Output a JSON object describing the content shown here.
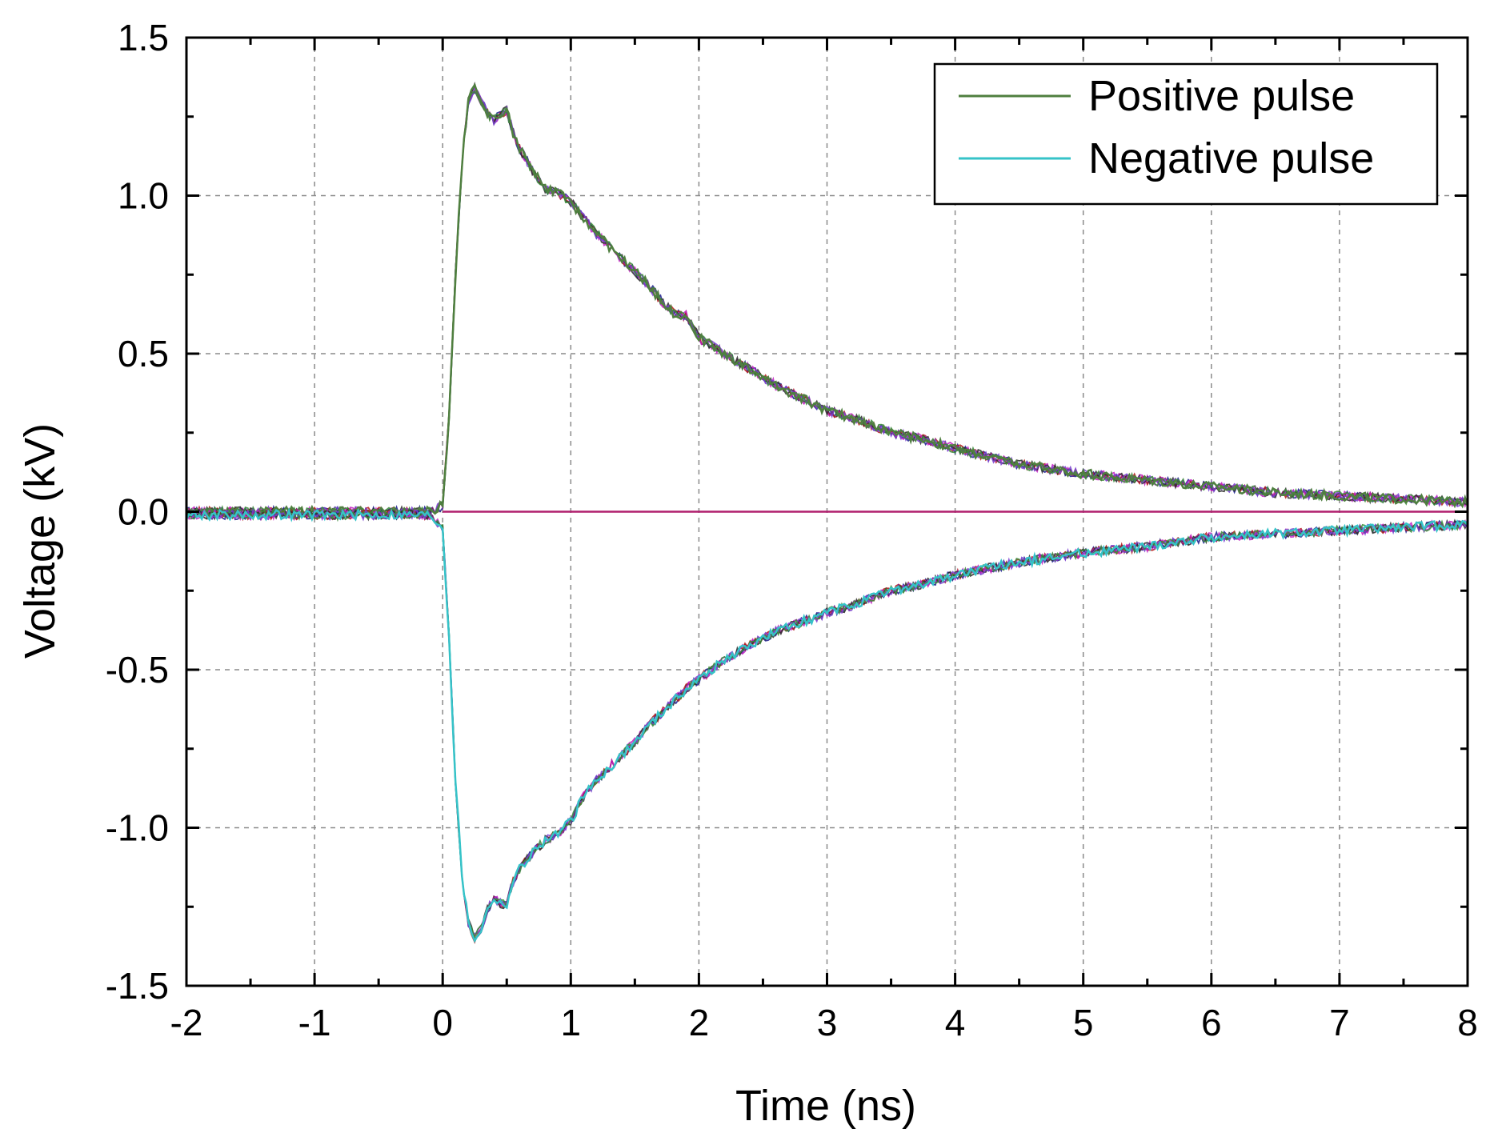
{
  "chart_data": {
    "type": "line",
    "title": "",
    "xlabel": "Time (ns)",
    "ylabel": "Voltage (kV)",
    "xlim": [
      -2,
      8
    ],
    "ylim": [
      -1.5,
      1.5
    ],
    "xticks": [
      -2,
      -1,
      0,
      1,
      2,
      3,
      4,
      5,
      6,
      7,
      8
    ],
    "xtick_labels": [
      "-2",
      "-1",
      "0",
      "1",
      "2",
      "3",
      "4",
      "5",
      "6",
      "7",
      "8"
    ],
    "yticks": [
      -1.5,
      -1.0,
      -0.5,
      0.0,
      0.5,
      1.0,
      1.5
    ],
    "ytick_labels": [
      "-1.5",
      "-1.0",
      "-0.5",
      "0.0",
      "0.5",
      "1.0",
      "1.5"
    ],
    "grid": true,
    "legend_position": "top-right",
    "legend": [
      {
        "label": "Positive pulse",
        "color": "#4f7f3f"
      },
      {
        "label": "Negative pulse",
        "color": "#35c3c8"
      }
    ],
    "reference_line": {
      "y": 0.0,
      "color": "#b0206e"
    },
    "series": [
      {
        "name": "Positive pulse",
        "color": "#4f7f3f",
        "x": [
          -2,
          -1.5,
          -1,
          -0.5,
          -0.1,
          0,
          0.05,
          0.1,
          0.15,
          0.2,
          0.25,
          0.3,
          0.35,
          0.4,
          0.45,
          0.5,
          0.55,
          0.6,
          0.7,
          0.8,
          0.9,
          1.0,
          1.1,
          1.2,
          1.3,
          1.4,
          1.5,
          1.6,
          1.7,
          1.8,
          1.9,
          2.0,
          2.2,
          2.4,
          2.6,
          2.8,
          3.0,
          3.25,
          3.5,
          3.75,
          4.0,
          4.5,
          5.0,
          5.5,
          6.0,
          6.5,
          7.0,
          7.5,
          8.0
        ],
        "y": [
          0.0,
          0.0,
          0.0,
          0.0,
          0.0,
          0.02,
          0.3,
          0.75,
          1.1,
          1.3,
          1.34,
          1.3,
          1.26,
          1.24,
          1.26,
          1.27,
          1.2,
          1.15,
          1.08,
          1.02,
          1.01,
          0.98,
          0.93,
          0.88,
          0.84,
          0.8,
          0.76,
          0.72,
          0.67,
          0.63,
          0.62,
          0.55,
          0.5,
          0.45,
          0.4,
          0.36,
          0.32,
          0.29,
          0.25,
          0.23,
          0.2,
          0.15,
          0.12,
          0.1,
          0.08,
          0.06,
          0.05,
          0.04,
          0.03
        ]
      },
      {
        "name": "Negative pulse",
        "color": "#35c3c8",
        "x": [
          -2,
          -1.5,
          -1,
          -0.5,
          -0.1,
          0,
          0.05,
          0.1,
          0.15,
          0.2,
          0.25,
          0.3,
          0.35,
          0.4,
          0.45,
          0.5,
          0.55,
          0.6,
          0.7,
          0.8,
          0.9,
          1.0,
          1.1,
          1.2,
          1.3,
          1.4,
          1.5,
          1.6,
          1.7,
          1.8,
          1.9,
          2.0,
          2.2,
          2.4,
          2.6,
          2.8,
          3.0,
          3.25,
          3.5,
          3.75,
          4.0,
          4.5,
          5.0,
          5.5,
          6.0,
          6.5,
          7.0,
          7.5,
          8.0
        ],
        "y": [
          -0.01,
          -0.01,
          -0.01,
          -0.01,
          -0.01,
          -0.05,
          -0.4,
          -0.85,
          -1.15,
          -1.3,
          -1.35,
          -1.32,
          -1.26,
          -1.22,
          -1.24,
          -1.24,
          -1.17,
          -1.13,
          -1.08,
          -1.04,
          -1.02,
          -0.98,
          -0.9,
          -0.85,
          -0.81,
          -0.77,
          -0.73,
          -0.68,
          -0.64,
          -0.6,
          -0.56,
          -0.53,
          -0.47,
          -0.42,
          -0.38,
          -0.35,
          -0.32,
          -0.29,
          -0.25,
          -0.23,
          -0.2,
          -0.16,
          -0.13,
          -0.11,
          -0.08,
          -0.07,
          -0.06,
          -0.05,
          -0.04
        ]
      }
    ]
  }
}
